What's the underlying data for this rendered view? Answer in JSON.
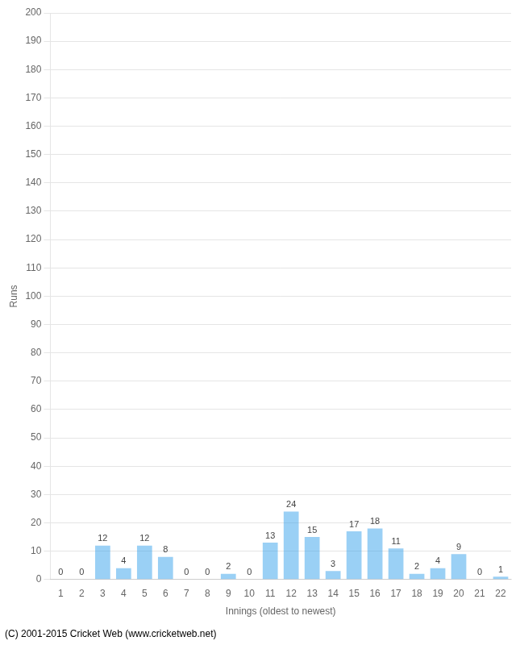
{
  "chart_data": {
    "type": "bar",
    "xlabel": "Innings (oldest to newest)",
    "ylabel": "Runs",
    "annotations": [
      "(C) 2001-2015 Cricket Web (www.cricketweb.net)"
    ],
    "categories": [
      "1",
      "2",
      "3",
      "4",
      "5",
      "6",
      "7",
      "8",
      "9",
      "10",
      "11",
      "12",
      "13",
      "14",
      "15",
      "16",
      "17",
      "18",
      "19",
      "20",
      "21",
      "22"
    ],
    "values": [
      0,
      0,
      12,
      4,
      12,
      8,
      0,
      0,
      2,
      0,
      13,
      24,
      15,
      3,
      17,
      18,
      11,
      2,
      4,
      9,
      0,
      1
    ],
    "ylim": [
      0,
      200
    ],
    "yticks": [
      0,
      10,
      20,
      30,
      40,
      50,
      60,
      70,
      80,
      90,
      100,
      110,
      120,
      130,
      140,
      150,
      160,
      170,
      180,
      190,
      200
    ],
    "grid": true,
    "data_labels": true
  }
}
